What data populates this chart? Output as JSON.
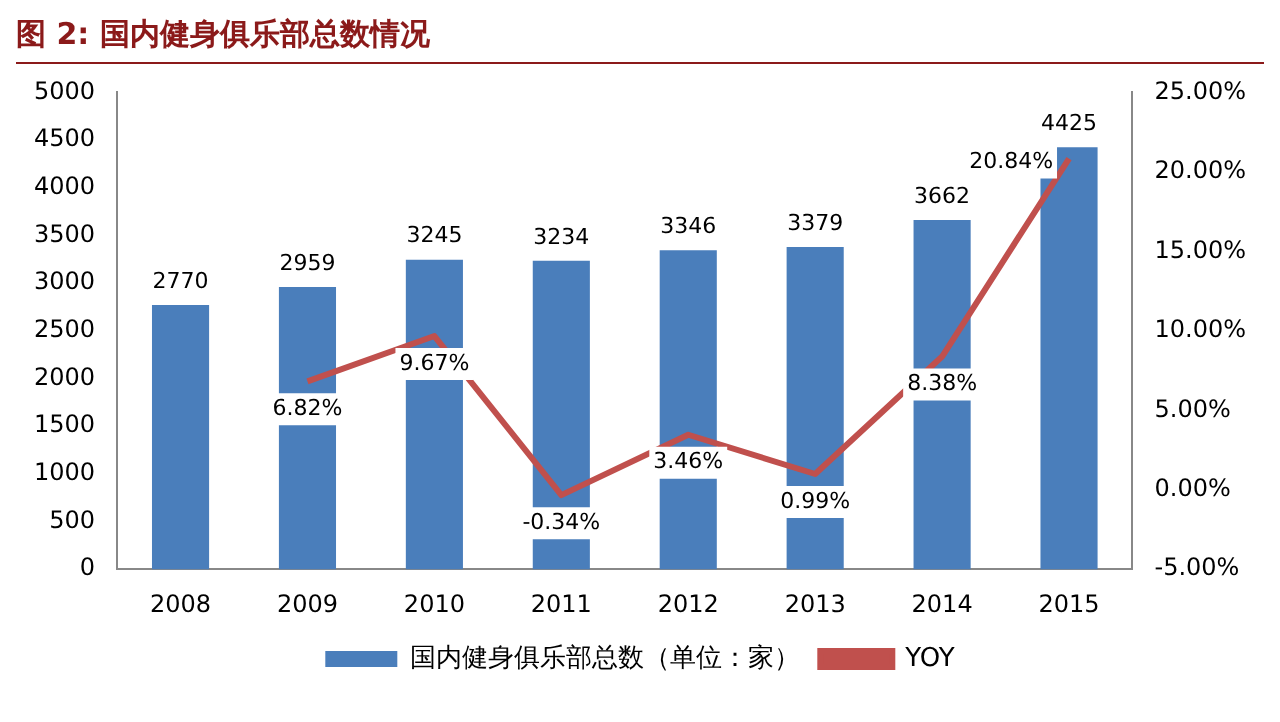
{
  "chart_data": {
    "type": "bar",
    "title": "图 2: 国内健身俱乐部总数情况",
    "categories": [
      "2008",
      "2009",
      "2010",
      "2011",
      "2012",
      "2013",
      "2014",
      "2015"
    ],
    "series": [
      {
        "name": "国内健身俱乐部总数（单位：家）",
        "color": "#4a7ebb",
        "values": [
          2770,
          2959,
          3245,
          3234,
          3346,
          3379,
          3662,
          4425
        ],
        "value_labels": [
          "2770",
          "2959",
          "3245",
          "3234",
          "3346",
          "3379",
          "3662",
          "4425"
        ]
      },
      {
        "name": "YOY",
        "type": "line",
        "axis": "y2",
        "color": "#c0504d",
        "values": [
          null,
          6.82,
          9.67,
          -0.34,
          3.46,
          0.99,
          8.38,
          20.84
        ],
        "value_labels": [
          null,
          "6.82%",
          "9.67%",
          "-0.34%",
          "3.46%",
          "0.99%",
          "8.38%",
          "20.84%"
        ]
      }
    ],
    "ylim": [
      0,
      5000
    ],
    "yticks": [
      0,
      500,
      1000,
      1500,
      2000,
      2500,
      3000,
      3500,
      4000,
      4500,
      5000
    ],
    "y2lim": [
      -5,
      25
    ],
    "y2ticks": [
      {
        "value": -5,
        "label": "-5.00%"
      },
      {
        "value": 0,
        "label": "0.00%"
      },
      {
        "value": 5,
        "label": "5.00%"
      },
      {
        "value": 10,
        "label": "10.00%"
      },
      {
        "value": 15,
        "label": "15.00%"
      },
      {
        "value": 20,
        "label": "20.00%"
      },
      {
        "value": 25,
        "label": "25.00%"
      }
    ],
    "grid": false,
    "legend": "bottom",
    "marker": "none",
    "line_style": "solid"
  }
}
